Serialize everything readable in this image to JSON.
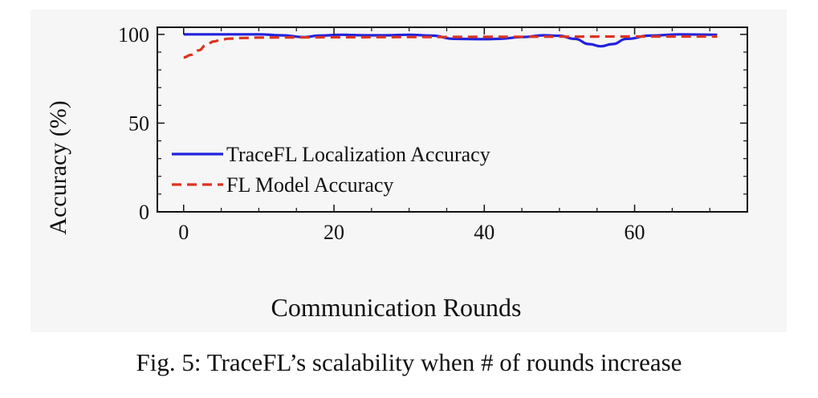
{
  "figure": {
    "caption": "Fig. 5: TraceFL’s scalability when # of rounds increase"
  },
  "colors": {
    "tracefl": "#2222dd",
    "fl_model": "#dd3322",
    "axis": "#111111",
    "background": "#f6f6f6"
  },
  "chart_data": {
    "type": "line",
    "title": "",
    "xlabel": "Communication Rounds",
    "ylabel": "Accuracy (%)",
    "xlim": [
      -3.5,
      75
    ],
    "ylim": [
      0,
      104
    ],
    "xticks": [
      0,
      20,
      40,
      60
    ],
    "xtick_labels": [
      "0",
      "20",
      "40",
      "60"
    ],
    "yticks": [
      0,
      50,
      100
    ],
    "ytick_labels": [
      "0",
      "50",
      "100"
    ],
    "grid": false,
    "legend_position": "center-left",
    "series": [
      {
        "name": "TraceFL Localization Accuracy",
        "style": "solid",
        "color": "#2222dd",
        "x": [
          0,
          5,
          10,
          13,
          16,
          18,
          21,
          24,
          27,
          30,
          33,
          36,
          40,
          42,
          45,
          48,
          50,
          52,
          54,
          55.5,
          57,
          59,
          62,
          66,
          71
        ],
        "y": [
          100,
          100,
          100,
          99.5,
          98.5,
          99.3,
          99.8,
          99.5,
          99.5,
          99.8,
          99.3,
          97.5,
          97.3,
          97.5,
          98.5,
          99.5,
          99.2,
          97.5,
          94.5,
          93.3,
          94.5,
          97.5,
          99.3,
          100,
          99.8
        ]
      },
      {
        "name": "FL Model Accuracy",
        "style": "dashed",
        "color": "#dd3322",
        "x": [
          0,
          1,
          2,
          3,
          4,
          5,
          6,
          8,
          10,
          15,
          20,
          30,
          40,
          50,
          60,
          71
        ],
        "y": [
          87,
          88.5,
          91,
          94,
          96,
          97,
          97.6,
          98,
          98.2,
          98.3,
          98.4,
          98.5,
          98.6,
          98.7,
          98.8,
          98.8
        ]
      }
    ]
  }
}
